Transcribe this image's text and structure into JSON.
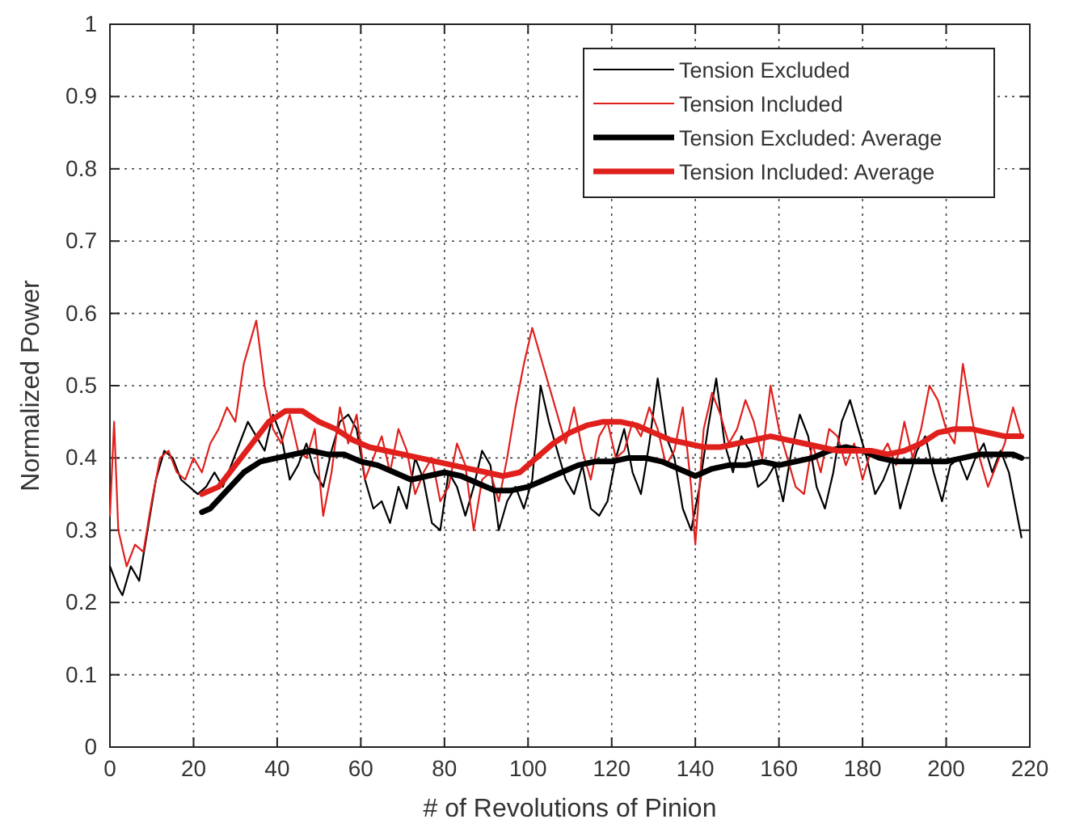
{
  "chart_data": {
    "type": "line",
    "xlabel": "# of Revolutions of Pinion",
    "ylabel": "Normalized Power",
    "xlim": [
      0,
      220
    ],
    "ylim": [
      0,
      1
    ],
    "xticks": [
      0,
      20,
      40,
      60,
      80,
      100,
      120,
      140,
      160,
      180,
      200,
      220
    ],
    "yticks": [
      0,
      0.1,
      0.2,
      0.3,
      0.4,
      0.5,
      0.6,
      0.7,
      0.8,
      0.9,
      1
    ],
    "grid": true,
    "legend": "top right",
    "line_style": "solid",
    "marker": "none",
    "series": [
      {
        "name": "Tension Excluded",
        "color": "#000000",
        "x": [
          0,
          2,
          3,
          5,
          7,
          9,
          11,
          13,
          15,
          17,
          19,
          21,
          23,
          25,
          27,
          29,
          31,
          33,
          35,
          37,
          39,
          41,
          43,
          45,
          47,
          49,
          51,
          53,
          55,
          57,
          59,
          61,
          63,
          65,
          67,
          69,
          71,
          73,
          75,
          77,
          79,
          81,
          83,
          85,
          87,
          89,
          91,
          93,
          95,
          97,
          99,
          101,
          103,
          105,
          107,
          109,
          111,
          113,
          115,
          117,
          119,
          121,
          123,
          125,
          127,
          129,
          131,
          133,
          135,
          137,
          139,
          141,
          143,
          145,
          147,
          149,
          151,
          153,
          155,
          157,
          159,
          161,
          163,
          165,
          167,
          169,
          171,
          173,
          175,
          177,
          179,
          181,
          183,
          185,
          187,
          189,
          191,
          193,
          195,
          197,
          199,
          201,
          203,
          205,
          207,
          209,
          211,
          213,
          215,
          217,
          218
        ],
        "values": [
          0.25,
          0.22,
          0.21,
          0.25,
          0.23,
          0.3,
          0.37,
          0.41,
          0.4,
          0.37,
          0.36,
          0.35,
          0.36,
          0.38,
          0.36,
          0.39,
          0.42,
          0.45,
          0.43,
          0.41,
          0.46,
          0.43,
          0.37,
          0.39,
          0.42,
          0.38,
          0.36,
          0.41,
          0.45,
          0.46,
          0.44,
          0.37,
          0.33,
          0.34,
          0.31,
          0.36,
          0.33,
          0.4,
          0.37,
          0.31,
          0.3,
          0.38,
          0.36,
          0.32,
          0.36,
          0.41,
          0.39,
          0.3,
          0.34,
          0.36,
          0.33,
          0.37,
          0.5,
          0.45,
          0.41,
          0.37,
          0.35,
          0.39,
          0.33,
          0.32,
          0.34,
          0.4,
          0.44,
          0.38,
          0.35,
          0.42,
          0.51,
          0.43,
          0.4,
          0.33,
          0.3,
          0.36,
          0.44,
          0.51,
          0.42,
          0.38,
          0.43,
          0.41,
          0.36,
          0.37,
          0.39,
          0.34,
          0.41,
          0.46,
          0.43,
          0.36,
          0.33,
          0.38,
          0.45,
          0.48,
          0.44,
          0.4,
          0.35,
          0.37,
          0.4,
          0.33,
          0.37,
          0.41,
          0.43,
          0.38,
          0.34,
          0.39,
          0.4,
          0.37,
          0.4,
          0.42,
          0.38,
          0.41,
          0.38,
          0.32,
          0.29
        ]
      },
      {
        "name": "Tension Included",
        "color": "#e0201c",
        "x": [
          0,
          1,
          2,
          4,
          6,
          8,
          10,
          12,
          14,
          16,
          18,
          20,
          22,
          24,
          26,
          28,
          30,
          32,
          34,
          35,
          37,
          39,
          41,
          43,
          45,
          47,
          49,
          51,
          53,
          55,
          57,
          59,
          61,
          63,
          65,
          67,
          69,
          71,
          73,
          75,
          77,
          79,
          81,
          83,
          85,
          87,
          89,
          91,
          93,
          95,
          97,
          99,
          101,
          103,
          105,
          107,
          109,
          111,
          113,
          115,
          117,
          119,
          121,
          123,
          125,
          127,
          129,
          131,
          133,
          135,
          137,
          139,
          140,
          142,
          144,
          146,
          148,
          150,
          152,
          154,
          156,
          158,
          160,
          162,
          164,
          166,
          168,
          170,
          172,
          174,
          176,
          178,
          180,
          182,
          184,
          186,
          188,
          190,
          192,
          194,
          196,
          198,
          200,
          202,
          204,
          206,
          208,
          210,
          212,
          214,
          216,
          218
        ],
        "values": [
          0.32,
          0.45,
          0.3,
          0.25,
          0.28,
          0.27,
          0.34,
          0.4,
          0.41,
          0.38,
          0.37,
          0.4,
          0.38,
          0.42,
          0.44,
          0.47,
          0.45,
          0.53,
          0.57,
          0.59,
          0.5,
          0.44,
          0.42,
          0.46,
          0.41,
          0.4,
          0.44,
          0.32,
          0.38,
          0.47,
          0.42,
          0.46,
          0.37,
          0.4,
          0.43,
          0.38,
          0.44,
          0.41,
          0.35,
          0.38,
          0.4,
          0.34,
          0.36,
          0.42,
          0.39,
          0.3,
          0.37,
          0.38,
          0.34,
          0.4,
          0.47,
          0.53,
          0.58,
          0.54,
          0.5,
          0.46,
          0.42,
          0.47,
          0.41,
          0.37,
          0.43,
          0.45,
          0.4,
          0.41,
          0.45,
          0.43,
          0.47,
          0.44,
          0.39,
          0.41,
          0.47,
          0.36,
          0.28,
          0.44,
          0.49,
          0.46,
          0.42,
          0.44,
          0.48,
          0.45,
          0.4,
          0.5,
          0.44,
          0.4,
          0.36,
          0.35,
          0.42,
          0.38,
          0.44,
          0.43,
          0.39,
          0.42,
          0.37,
          0.41,
          0.4,
          0.42,
          0.39,
          0.45,
          0.4,
          0.44,
          0.5,
          0.48,
          0.44,
          0.42,
          0.53,
          0.46,
          0.4,
          0.36,
          0.39,
          0.42,
          0.47,
          0.43
        ]
      },
      {
        "name": "Tension Excluded: Average",
        "color": "#000000",
        "x": [
          22,
          24,
          28,
          32,
          36,
          40,
          44,
          48,
          52,
          56,
          60,
          64,
          68,
          72,
          76,
          80,
          84,
          88,
          92,
          96,
          100,
          104,
          108,
          112,
          116,
          120,
          124,
          128,
          132,
          136,
          140,
          144,
          148,
          152,
          156,
          160,
          164,
          168,
          172,
          176,
          180,
          184,
          188,
          192,
          196,
          200,
          204,
          208,
          212,
          216,
          218
        ],
        "values": [
          0.325,
          0.33,
          0.355,
          0.38,
          0.395,
          0.4,
          0.405,
          0.41,
          0.405,
          0.405,
          0.395,
          0.39,
          0.38,
          0.37,
          0.375,
          0.38,
          0.375,
          0.365,
          0.355,
          0.355,
          0.36,
          0.37,
          0.38,
          0.39,
          0.395,
          0.395,
          0.4,
          0.4,
          0.395,
          0.385,
          0.375,
          0.385,
          0.39,
          0.39,
          0.395,
          0.39,
          0.395,
          0.4,
          0.41,
          0.415,
          0.41,
          0.4,
          0.395,
          0.395,
          0.395,
          0.395,
          0.4,
          0.405,
          0.405,
          0.405,
          0.4
        ]
      },
      {
        "name": "Tension Included: Average",
        "color": "#e0201c",
        "x": [
          22,
          26,
          30,
          34,
          38,
          42,
          46,
          50,
          54,
          58,
          62,
          66,
          70,
          74,
          78,
          82,
          86,
          90,
          94,
          98,
          102,
          106,
          110,
          114,
          118,
          122,
          126,
          130,
          134,
          138,
          142,
          146,
          150,
          154,
          158,
          162,
          166,
          170,
          174,
          178,
          182,
          186,
          190,
          194,
          198,
          202,
          206,
          210,
          214,
          218
        ],
        "values": [
          0.35,
          0.36,
          0.39,
          0.42,
          0.45,
          0.465,
          0.465,
          0.45,
          0.44,
          0.425,
          0.415,
          0.41,
          0.405,
          0.4,
          0.395,
          0.39,
          0.385,
          0.38,
          0.375,
          0.38,
          0.4,
          0.42,
          0.435,
          0.445,
          0.45,
          0.45,
          0.445,
          0.435,
          0.425,
          0.42,
          0.415,
          0.415,
          0.42,
          0.425,
          0.43,
          0.425,
          0.42,
          0.415,
          0.41,
          0.41,
          0.41,
          0.405,
          0.41,
          0.42,
          0.435,
          0.44,
          0.44,
          0.435,
          0.43,
          0.43
        ]
      }
    ]
  }
}
